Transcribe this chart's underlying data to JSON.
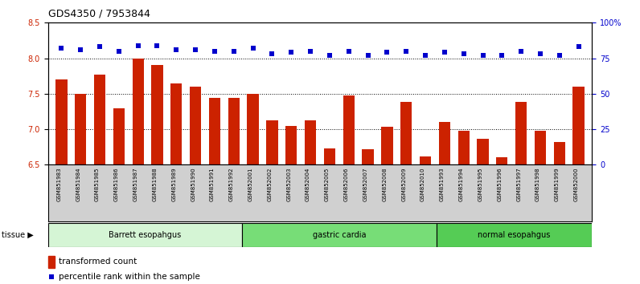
{
  "title": "GDS4350 / 7953844",
  "samples": [
    "GSM851983",
    "GSM851984",
    "GSM851985",
    "GSM851986",
    "GSM851987",
    "GSM851988",
    "GSM851989",
    "GSM851990",
    "GSM851991",
    "GSM851992",
    "GSM852001",
    "GSM852002",
    "GSM852003",
    "GSM852004",
    "GSM852005",
    "GSM852006",
    "GSM852007",
    "GSM852008",
    "GSM852009",
    "GSM852010",
    "GSM851993",
    "GSM851994",
    "GSM851995",
    "GSM851996",
    "GSM851997",
    "GSM851998",
    "GSM851999",
    "GSM852000"
  ],
  "bar_values": [
    7.7,
    7.5,
    7.77,
    7.3,
    8.0,
    7.9,
    7.65,
    7.6,
    7.44,
    7.44,
    7.5,
    7.13,
    7.05,
    7.13,
    6.73,
    7.47,
    6.72,
    7.04,
    7.38,
    6.62,
    7.1,
    6.98,
    6.87,
    6.6,
    7.38,
    6.98,
    6.82,
    7.6
  ],
  "dot_values": [
    82,
    81,
    83,
    80,
    84,
    84,
    81,
    81,
    80,
    80,
    82,
    78,
    79,
    80,
    77,
    80,
    77,
    79,
    80,
    77,
    79,
    78,
    77,
    77,
    80,
    78,
    77,
    83
  ],
  "groups": [
    {
      "label": "Barrett esopahgus",
      "start": 0,
      "end": 10,
      "color": "#d5f5d5"
    },
    {
      "label": "gastric cardia",
      "start": 10,
      "end": 20,
      "color": "#77dd77"
    },
    {
      "label": "normal esopahgus",
      "start": 20,
      "end": 28,
      "color": "#55cc55"
    }
  ],
  "ylim_left": [
    6.5,
    8.5
  ],
  "ylim_right": [
    0,
    100
  ],
  "yticks_left": [
    6.5,
    7.0,
    7.5,
    8.0,
    8.5
  ],
  "yticks_right": [
    0,
    25,
    50,
    75,
    100
  ],
  "bar_color": "#cc2200",
  "dot_color": "#0000cc",
  "background_color": "#ffffff",
  "legend_bar": "transformed count",
  "legend_dot": "percentile rank within the sample",
  "tissue_label": "tissue",
  "xtick_bg": "#d0d0d0"
}
